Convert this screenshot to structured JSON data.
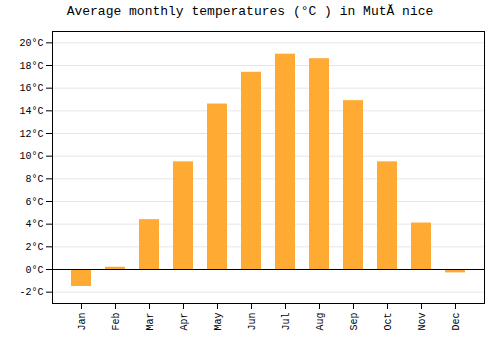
{
  "chart_data": {
    "type": "bar",
    "title": "Average monthly temperatures (°C ) in MutĂ nice",
    "categories": [
      "Jan",
      "Feb",
      "Mar",
      "Apr",
      "May",
      "Jun",
      "Jul",
      "Aug",
      "Sep",
      "Oct",
      "Nov",
      "Dec"
    ],
    "values": [
      -1.5,
      0.2,
      4.4,
      9.5,
      14.6,
      17.4,
      19.0,
      18.6,
      14.9,
      9.5,
      4.1,
      -0.3
    ],
    "color": "#FFAA33",
    "ylim": [
      -3,
      21
    ],
    "yticks": [
      {
        "value": -2,
        "label": "-2°C"
      },
      {
        "value": 0,
        "label": "0°C"
      },
      {
        "value": 2,
        "label": "2°C"
      },
      {
        "value": 4,
        "label": "4°C"
      },
      {
        "value": 6,
        "label": "6°C"
      },
      {
        "value": 8,
        "label": "8°C"
      },
      {
        "value": 10,
        "label": "10°C"
      },
      {
        "value": 12,
        "label": "12°C"
      },
      {
        "value": 14,
        "label": "14°C"
      },
      {
        "value": 16,
        "label": "16°C"
      },
      {
        "value": 18,
        "label": "18°C"
      },
      {
        "value": 20,
        "label": "20°C"
      }
    ],
    "grid": true
  }
}
